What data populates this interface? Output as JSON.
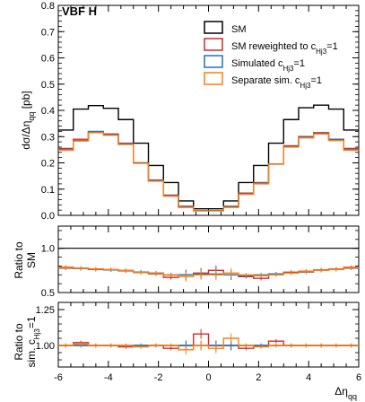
{
  "chart_data": {
    "type": "step",
    "title": "VBF H",
    "xlabel": "Δη_qq",
    "x_range": [
      -6,
      6
    ],
    "bin_edges": [
      -6,
      -5.4,
      -4.8,
      -4.2,
      -3.6,
      -3,
      -2.4,
      -1.8,
      -1.2,
      -0.6,
      0,
      0.6,
      1.2,
      1.8,
      2.4,
      3,
      3.6,
      4.2,
      4.8,
      5.4,
      6
    ],
    "x_ticks": [
      "-6",
      "-4",
      "-2",
      "0",
      "2",
      "4",
      "6"
    ],
    "legend": {
      "placement": "top-right",
      "entries": [
        {
          "label": "SM",
          "color": "#000000"
        },
        {
          "label": "SM reweighted to c_Hj3=1",
          "color": "#d62728"
        },
        {
          "label": "Simulated c_Hj3=1",
          "color": "#1f77b4"
        },
        {
          "label": "Separate sim. c_Hj3=1",
          "color": "#ff7f0e"
        }
      ]
    },
    "panels": [
      {
        "ylabel": "dσ/Δη_qq [pb]",
        "ylim": [
          0,
          0.8
        ],
        "y_ticks": [
          "0.0",
          "0.1",
          "0.2",
          "0.3",
          "0.4",
          "0.5",
          "0.6",
          "0.7",
          "0.8"
        ],
        "series": [
          {
            "name": "SM",
            "color": "#000000",
            "values": [
              0.325,
              0.405,
              0.418,
              0.408,
              0.365,
              0.275,
              0.19,
              0.125,
              0.055,
              0.025,
              0.025,
              0.055,
              0.125,
              0.19,
              0.275,
              0.365,
              0.41,
              0.42,
              0.405,
              0.325
            ]
          },
          {
            "name": "SM reweighted to c_Hj3=1",
            "color": "#d62728",
            "values": [
              0.255,
              0.29,
              0.318,
              0.31,
              0.275,
              0.2,
              0.135,
              0.077,
              0.035,
              0.018,
              0.018,
              0.035,
              0.085,
              0.125,
              0.195,
              0.265,
              0.3,
              0.315,
              0.29,
              0.255
            ]
          },
          {
            "name": "Simulated c_Hj3=1",
            "color": "#1f77b4",
            "values": [
              0.25,
              0.285,
              0.32,
              0.308,
              0.273,
              0.2,
              0.133,
              0.075,
              0.033,
              0.018,
              0.018,
              0.033,
              0.082,
              0.123,
              0.196,
              0.262,
              0.298,
              0.312,
              0.288,
              0.25
            ]
          },
          {
            "name": "Separate sim. c_Hj3=1",
            "color": "#ff7f0e",
            "values": [
              0.248,
              0.283,
              0.315,
              0.305,
              0.27,
              0.198,
              0.13,
              0.073,
              0.03,
              0.017,
              0.017,
              0.03,
              0.08,
              0.12,
              0.195,
              0.26,
              0.295,
              0.31,
              0.285,
              0.248
            ]
          }
        ]
      },
      {
        "ylabel": "Ratio to SM",
        "ylim": [
          0.5,
          1.25
        ],
        "y_ticks": [
          "0.5",
          "1.0"
        ],
        "reference_line": 1.0,
        "series": [
          {
            "name": "SM reweighted to c_Hj3=1",
            "color": "#d62728",
            "values": [
              0.785,
              0.775,
              0.76,
              0.755,
              0.745,
              0.73,
              0.71,
              0.67,
              0.7,
              0.72,
              0.75,
              0.7,
              0.68,
              0.66,
              0.71,
              0.73,
              0.74,
              0.755,
              0.765,
              0.785
            ]
          },
          {
            "name": "Simulated c_Hj3=1",
            "color": "#1f77b4",
            "values": [
              0.775,
              0.77,
              0.765,
              0.755,
              0.75,
              0.73,
              0.72,
              0.7,
              0.7,
              0.71,
              0.71,
              0.7,
              0.69,
              0.7,
              0.71,
              0.72,
              0.73,
              0.75,
              0.76,
              0.775
            ]
          },
          {
            "name": "Separate sim. c_Hj3=1",
            "color": "#ff7f0e",
            "values": [
              0.78,
              0.775,
              0.765,
              0.76,
              0.75,
              0.725,
              0.715,
              0.695,
              0.68,
              0.7,
              0.7,
              0.72,
              0.7,
              0.69,
              0.7,
              0.72,
              0.735,
              0.75,
              0.76,
              0.78
            ]
          }
        ]
      },
      {
        "ylabel": "Ratio to sim. c_Hj3=1",
        "ylim": [
          0.85,
          1.3
        ],
        "y_ticks": [
          "1.00",
          "1.25"
        ],
        "reference_line": 1.0,
        "series": [
          {
            "name": "SM reweighted to c_Hj3=1",
            "color": "#d62728",
            "values": [
              1.0,
              1.02,
              1.0,
              1.0,
              0.99,
              1.0,
              1.0,
              0.98,
              1.0,
              1.08,
              1.0,
              1.0,
              0.98,
              1.0,
              1.03,
              1.0,
              1.0,
              1.0,
              1.0,
              1.0
            ]
          },
          {
            "name": "Simulated c_Hj3=1",
            "color": "#1f77b4",
            "values": [
              1.0,
              1.0,
              1.0,
              1.0,
              1.0,
              1.0,
              1.0,
              1.0,
              1.0,
              1.0,
              1.0,
              1.0,
              1.0,
              1.0,
              1.0,
              1.0,
              1.0,
              1.0,
              1.0,
              1.0
            ]
          },
          {
            "name": "Separate sim. c_Hj3=1",
            "color": "#ff7f0e",
            "values": [
              1.0,
              1.01,
              1.0,
              1.0,
              1.0,
              0.99,
              1.0,
              1.0,
              0.97,
              1.0,
              0.98,
              1.05,
              1.0,
              0.99,
              1.0,
              1.0,
              1.0,
              1.0,
              1.0,
              1.0
            ]
          }
        ]
      }
    ]
  }
}
